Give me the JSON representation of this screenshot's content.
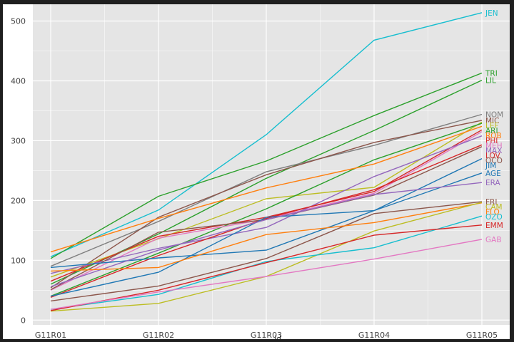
{
  "chart_data": {
    "type": "line",
    "x": [
      "G11R01",
      "G11R02",
      "G11R03",
      "G11R04",
      "G11R05"
    ],
    "xlabel": "id",
    "ylabel": "",
    "ylim": [
      -8,
      528
    ],
    "yticks": [
      0,
      100,
      200,
      300,
      400,
      500
    ],
    "grid": true,
    "legend": "end-of-line labels",
    "series": [
      {
        "name": "JEN",
        "color": "#17becf",
        "values": [
          106,
          184,
          310,
          468,
          514
        ]
      },
      {
        "name": "TRI",
        "color": "#2ca02c",
        "values": [
          103,
          207,
          266,
          342,
          413
        ]
      },
      {
        "name": "LIL",
        "color": "#2ca02c",
        "values": [
          60,
          144,
          237,
          317,
          401
        ]
      },
      {
        "name": "NOM",
        "color": "#7f7f7f",
        "values": [
          90,
          165,
          248,
          292,
          344
        ]
      },
      {
        "name": "MIC",
        "color": "#8c564b",
        "values": [
          54,
          172,
          243,
          297,
          334
        ]
      },
      {
        "name": "LEF",
        "color": "#bcbd22",
        "values": [
          72,
          136,
          203,
          222,
          331
        ]
      },
      {
        "name": "ARI",
        "color": "#2ca02c",
        "values": [
          40,
          112,
          186,
          268,
          329
        ]
      },
      {
        "name": "ROB",
        "color": "#ff7f0e",
        "values": [
          114,
          170,
          221,
          261,
          324
        ]
      },
      {
        "name": "PHI",
        "color": "#d62728",
        "values": [
          65,
          140,
          172,
          215,
          318
        ]
      },
      {
        "name": "MEH",
        "color": "#e377c2",
        "values": [
          50,
          137,
          169,
          212,
          315
        ]
      },
      {
        "name": "MAX",
        "color": "#9467bd",
        "values": [
          78,
          120,
          155,
          240,
          308
        ]
      },
      {
        "name": "LOV",
        "color": "#d62728",
        "values": [
          38,
          108,
          170,
          218,
          293
        ]
      },
      {
        "name": "OCO",
        "color": "#8c564b",
        "values": [
          51,
          147,
          168,
          209,
          290
        ]
      },
      {
        "name": "JIM",
        "color": "#1f77b4",
        "values": [
          88,
          104,
          117,
          183,
          270
        ]
      },
      {
        "name": "AGE",
        "color": "#1f77b4",
        "values": [
          40,
          80,
          172,
          183,
          246
        ]
      },
      {
        "name": "ERA",
        "color": "#9467bd",
        "values": [
          56,
          117,
          168,
          210,
          230
        ]
      },
      {
        "name": "FRI",
        "color": "#8c564b",
        "values": [
          32,
          57,
          103,
          178,
          198
        ]
      },
      {
        "name": "FLO",
        "color": "#ff7f0e",
        "values": [
          82,
          88,
          143,
          163,
          196
        ]
      },
      {
        "name": "CAM",
        "color": "#bcbd22",
        "values": [
          15,
          28,
          73,
          149,
          197
        ]
      },
      {
        "name": "OZO",
        "color": "#17becf",
        "values": [
          18,
          43,
          98,
          121,
          174
        ]
      },
      {
        "name": "EMM",
        "color": "#d62728",
        "values": [
          16,
          50,
          96,
          142,
          159
        ]
      },
      {
        "name": "GAB",
        "color": "#e377c2",
        "values": [
          18,
          47,
          73,
          102,
          135
        ]
      }
    ]
  }
}
